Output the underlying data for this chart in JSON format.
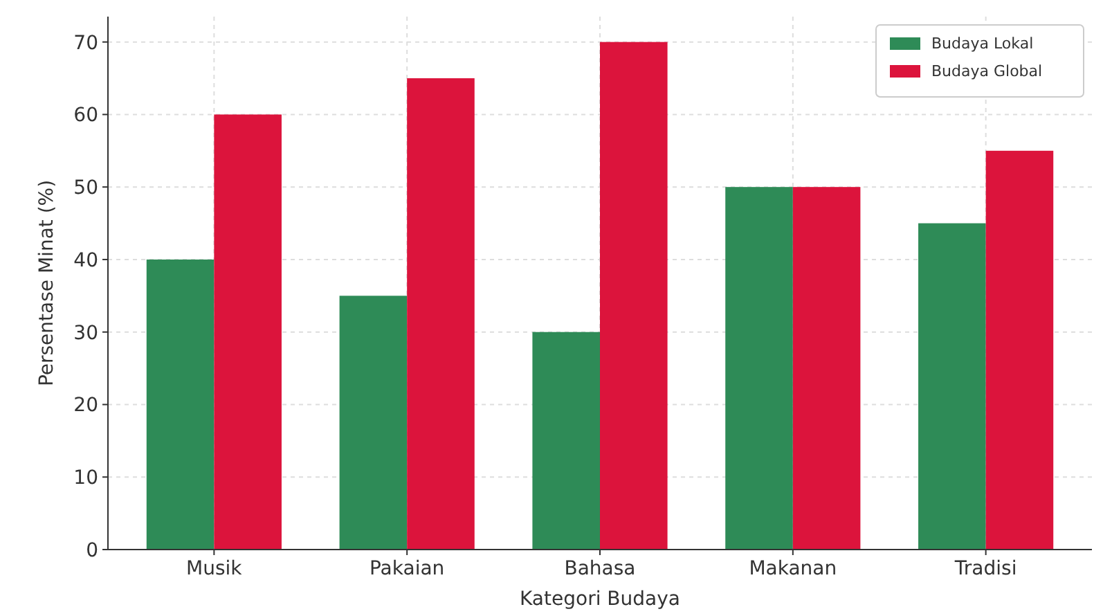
{
  "chart_data": {
    "type": "bar",
    "xlabel": "Kategori Budaya",
    "ylabel": "Persentase Minat (%)",
    "categories": [
      "Musik",
      "Pakaian",
      "Bahasa",
      "Makanan",
      "Tradisi"
    ],
    "series": [
      {
        "name": "Budaya Lokal",
        "color": "#2e8b57",
        "values": [
          40,
          35,
          30,
          50,
          45
        ]
      },
      {
        "name": "Budaya Global",
        "color": "#dc143c",
        "values": [
          60,
          65,
          70,
          50,
          55
        ]
      }
    ],
    "ylim": [
      0,
      73.5
    ],
    "yticks": [
      0,
      10,
      20,
      30,
      40,
      50,
      60,
      70
    ],
    "grid": true,
    "legend": "top right"
  }
}
